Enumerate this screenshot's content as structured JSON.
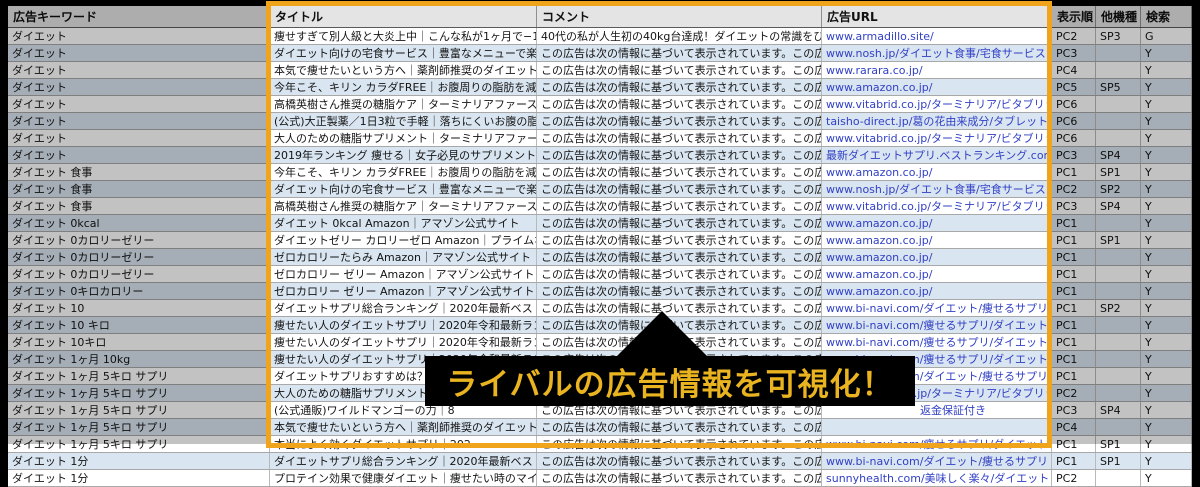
{
  "header": {
    "keyword": "広告キーワード",
    "title": "タイトル",
    "comment": "コメント",
    "url": "広告URL",
    "display_order": "表示順",
    "other_device": "他機種",
    "search": "検索"
  },
  "banner": {
    "text": "ライバルの広告情報を可視化！"
  },
  "colors": {
    "highlight_border": "#f0a41c",
    "banner_background": "#000000",
    "banner_text": "#e9b41f",
    "link_blue": "#3140c6",
    "alt_row_blue": "#d9e5f0"
  },
  "rows": [
    {
      "kw": "ダイエット",
      "title": "痩せすぎて別人級と大炎上中｜こんな私が1ヶ月で−15kg？",
      "comment": "40代の私が人生初の40kg台達成！ダイエットの常識をひっくり返し…",
      "url": "www.armadillo.site/",
      "disp": "PC2",
      "other": "SP3",
      "search": "G"
    },
    {
      "kw": "ダイエット",
      "title": "ダイエット向けの宅食サービス｜豊富なメニューで楽しく続く",
      "comment": "この広告は次の情報に基づいて表示されています。この広告は次…",
      "url": "www.nosh.jp/ダイエット食事/宅食サービス",
      "disp": "PC3",
      "other": "",
      "search": "Y"
    },
    {
      "kw": "ダイエット",
      "title": "本気で痩せたいという方へ｜薬剤師推奨のダイエット茶980円",
      "comment": "この広告は次の情報に基づいて表示されています。この広告は次…",
      "url": "www.rarara.co.jp/",
      "disp": "PC4",
      "other": "",
      "search": "Y"
    },
    {
      "kw": "ダイエット",
      "title": "今年こそ、キリン カラダFREE｜お腹周りの脂肪を減らすノン",
      "comment": "この広告は次の情報に基づいて表示されています。この広告は次…",
      "url": "www.amazon.co.jp/",
      "disp": "PC5",
      "other": "SP5",
      "search": "Y"
    },
    {
      "kw": "ダイエット",
      "title": "高橋英樹さん推奨の糖脂ケア｜ターミナリアファースト(公式)",
      "comment": "この広告は次の情報に基づいて表示されています。この広告は次…",
      "url": "www.vitabrid.co.jp/ターミナリア/ビタブリッド",
      "disp": "PC6",
      "other": "",
      "search": "Y"
    },
    {
      "kw": "ダイエット",
      "title": "(公式)大正製薬／1日3粒で手軽｜落ちにくいお腹の脂肪に",
      "comment": "この広告は次の情報に基づいて表示されています。この広告は次…",
      "url": "taisho-direct.jp/葛の花由来成分/タブレット",
      "disp": "PC6",
      "other": "",
      "search": "Y"
    },
    {
      "kw": "ダイエット",
      "title": "大人のための糖脂サプリメント｜ターミナリアファースト(公式)",
      "comment": "この広告は次の情報に基づいて表示されています。この広告は次…",
      "url": "www.vitabrid.co.jp/ターミナリア/ビタブリッド",
      "disp": "PC6",
      "other": "",
      "search": "Y"
    },
    {
      "kw": "ダイエット",
      "title": "2019年ランキング 痩せる｜女子必見のサプリメントはコレ",
      "comment": "この広告は次の情報に基づいて表示されています。この広告は次…",
      "url": "最新ダイエットサプリ.ベストランキング.com/",
      "disp": "PC3",
      "other": "SP4",
      "search": "Y"
    },
    {
      "kw": "ダイエット 食事",
      "title": "今年こそ、キリン カラダFREE｜お腹周りの脂肪を減らすノン",
      "comment": "この広告は次の情報に基づいて表示されています。この広告は次…",
      "url": "www.amazon.co.jp/",
      "disp": "PC1",
      "other": "SP1",
      "search": "Y"
    },
    {
      "kw": "ダイエット 食事",
      "title": "ダイエット向けの宅食サービス｜豊富なメニューで楽しく続く",
      "comment": "この広告は次の情報に基づいて表示されています。この広告は次…",
      "url": "www.nosh.jp/ダイエット食事/宅食サービス",
      "disp": "PC2",
      "other": "SP2",
      "search": "Y"
    },
    {
      "kw": "ダイエット 食事",
      "title": "高橋英樹さん推奨の糖脂ケア｜ターミナリアファースト(公式)",
      "comment": "この広告は次の情報に基づいて表示されています。この広告は次…",
      "url": "www.vitabrid.co.jp/ターミナリア/ビタブリッド",
      "disp": "PC3",
      "other": "SP4",
      "search": "Y"
    },
    {
      "kw": "ダイエット 0kcal",
      "title": "ダイエット 0kcal Amazon｜アマゾン公式サイト",
      "comment": "この広告は次の情報に基づいて表示されています。この広告は次…",
      "url": "www.amazon.co.jp/",
      "disp": "PC1",
      "other": "",
      "search": "Y"
    },
    {
      "kw": "ダイエット 0カロリーゼリー",
      "title": "ダイエットゼリー カロリーゼロ Amazon｜プライムなら対",
      "comment": "この広告は次の情報に基づいて表示されています。この広告は次…",
      "url": "www.amazon.co.jp/",
      "disp": "PC1",
      "other": "SP1",
      "search": "Y"
    },
    {
      "kw": "ダイエット 0カロリーゼリー",
      "title": "ゼロカロリーたらみ Amazon｜アマゾン公式サイト",
      "comment": "この広告は次の情報に基づいて表示されています。この広告は次…",
      "url": "www.amazon.co.jp/",
      "disp": "PC1",
      "other": "",
      "search": "Y"
    },
    {
      "kw": "ダイエット 0カロリーゼリー",
      "title": "ゼロカロリー ゼリー Amazon｜アマゾン公式サイト",
      "comment": "この広告は次の情報に基づいて表示されています。この広告は次…",
      "url": "www.amazon.co.jp/",
      "disp": "PC1",
      "other": "",
      "search": "Y"
    },
    {
      "kw": "ダイエット 0キロカロリー",
      "title": "ゼロカロリー ゼリー Amazon｜アマゾン公式サイト",
      "comment": "この広告は次の情報に基づいて表示されています。この広告は次…",
      "url": "www.amazon.co.jp/",
      "disp": "PC1",
      "other": "",
      "search": "Y"
    },
    {
      "kw": "ダイエット 10",
      "title": "ダイエットサプリ総合ランキング｜2020年最新ベスト5を公開",
      "comment": "この広告は次の情報に基づいて表示されています。この広告は次…",
      "url": "www.bi-navi.com/ダイエット/痩せるサプリ",
      "disp": "PC1",
      "other": "SP2",
      "search": "Y"
    },
    {
      "kw": "ダイエット 10 キロ",
      "title": "痩せたい人のダイエットサプリ｜2020年令和最新ランキング",
      "comment": "この広告は次の情報に基づいて表示されています。この広告は次…",
      "url": "www.bi-navi.com/痩せるサプリ/ダイエット",
      "disp": "PC1",
      "other": "",
      "search": "Y"
    },
    {
      "kw": "ダイエット 10キロ",
      "title": "痩せたい人のダイエットサプリ｜2020年令和最新ランキング",
      "comment": "この広告は次の情報に基づいて表示されています。この広告は次…",
      "url": "www.bi-navi.com/痩せるサプリ/ダイエット",
      "disp": "PC1",
      "other": "",
      "search": "Y"
    },
    {
      "kw": "ダイエット 1ヶ月 10kg",
      "title": "痩せたい人のダイエットサプリ｜2020年令和最新ランキング",
      "comment": "この広告は次の情報に基づいて表示されています。この広告は次…",
      "url": "www.bi-navi.com/痩せるサプリ/ダイエット",
      "disp": "PC1",
      "other": "",
      "search": "Y"
    },
    {
      "kw": "ダイエット 1ヶ月 5キロ サプリ",
      "title": "ダイエットサプリおすすめは？｜2020年令和最新ランキング",
      "comment": "この広告は次の情報に基づいて表示されています。この広告は次…",
      "url": "www.bi-navi.com/ダイエット/痩せるサプリ",
      "disp": "PC1",
      "other": "",
      "search": "Y"
    },
    {
      "kw": "ダイエット 1ヶ月 5キロ サプリ",
      "title": "大人のための糖脂サプリメント｜ターミナリアファースト(公式)",
      "comment": "この広告は次の情報に基づいて表示されています。この広告は次…",
      "url": "www.vitabrid.co.jp/ターミナリア/ビタブリッド",
      "disp": "PC2",
      "other": "",
      "search": "Y"
    },
    {
      "kw": "ダイエット 1ヶ月 5キロ サプリ",
      "title": "(公式通販)ワイルドマンゴーの力｜8",
      "comment": "この広告は次の情報に基づいて表示されています。この広告は次…",
      "url": "返金保証付き",
      "url_tail": true,
      "disp": "PC3",
      "other": "SP4",
      "search": "Y"
    },
    {
      "kw": "ダイエット 1ヶ月 5キロ サプリ",
      "title": "本気で痩せたいという方へ｜薬剤師推奨のダイエット茶980円",
      "comment": "この広告は次の情報に基づいて表示されています。この広告は次…",
      "url": "",
      "disp": "PC4",
      "other": "",
      "search": "Y"
    },
    {
      "kw": "ダイエット 1ヶ月 5キロ サプリ",
      "title": "本当によく効くダイエットサプリ｜202",
      "comment": "この広告は次の情報に基づいて表示されています。この広告は次…",
      "url": "www.bi-navi.com/痩せるサプリ/ダイエット",
      "disp": "PC1",
      "other": "SP1",
      "search": "Y"
    },
    {
      "kw": "ダイエット 1分",
      "title": "ダイエットサプリ総合ランキング｜2020年最新ベスト5を公開",
      "comment": "この広告は次の情報に基づいて表示されています。この広告は次…",
      "url": "www.bi-navi.com/ダイエット/痩せるサプリ",
      "disp": "PC1",
      "other": "SP1",
      "search": "Y"
    },
    {
      "kw": "ダイエット 1分",
      "title": "プロテイン効果で健康ダイエット｜痩せたい時のマイクロダイエッ",
      "comment": "この広告は次の情報に基づいて表示されています。この広告は次…",
      "url": "sunnyhealth.com/美味しく楽々/ダイエット",
      "disp": "PC2",
      "other": "",
      "search": "Y"
    }
  ]
}
